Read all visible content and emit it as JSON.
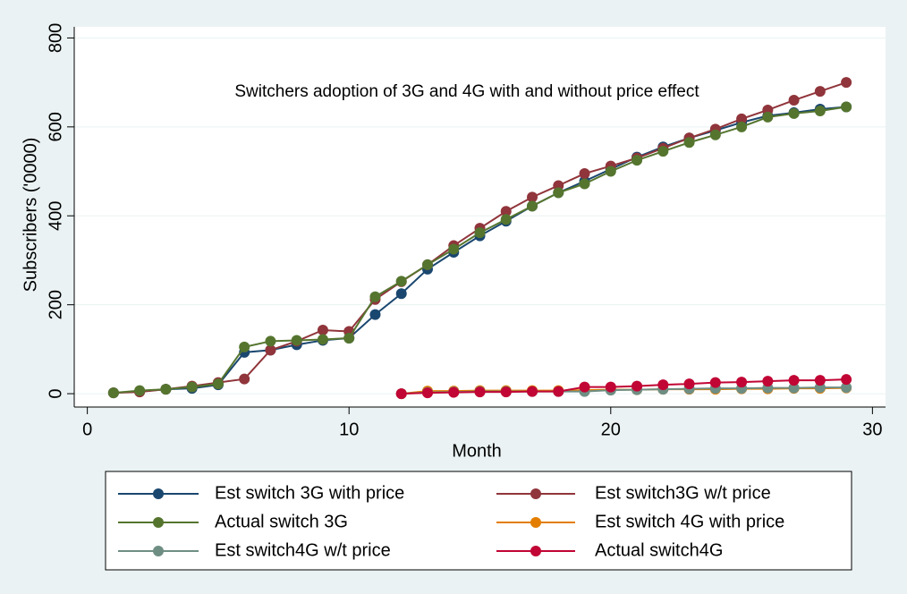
{
  "chart_data": {
    "type": "line",
    "title": "Switchers adoption of 3G and 4G with and without price effect",
    "x_label": "Month",
    "y_label": "Subscribers ('0000)",
    "x": [
      1,
      2,
      3,
      4,
      5,
      6,
      7,
      8,
      9,
      10,
      11,
      12,
      13,
      14,
      15,
      16,
      17,
      18,
      19,
      20,
      21,
      22,
      23,
      24,
      25,
      26,
      27,
      28,
      29
    ],
    "series": [
      {
        "name": "Est switch 3G with price",
        "color": "#1a476f",
        "values": [
          2,
          5,
          10,
          12,
          20,
          93,
          98,
          110,
          120,
          125,
          178,
          225,
          280,
          318,
          355,
          388,
          422,
          452,
          478,
          505,
          532,
          555,
          575,
          592,
          610,
          625,
          632,
          640,
          645
        ]
      },
      {
        "name": "Est switch3G w/t price",
        "color": "#90353b",
        "values": [
          2,
          4,
          10,
          17,
          25,
          33,
          98,
          118,
          143,
          140,
          212,
          252,
          290,
          333,
          372,
          410,
          442,
          468,
          495,
          512,
          530,
          552,
          575,
          595,
          618,
          638,
          660,
          680,
          700
        ]
      },
      {
        "name": "Actual switch 3G",
        "color": "#55752f",
        "values": [
          2,
          7,
          10,
          15,
          22,
          105,
          118,
          120,
          122,
          125,
          218,
          253,
          290,
          325,
          362,
          392,
          422,
          452,
          472,
          500,
          525,
          545,
          565,
          582,
          600,
          622,
          630,
          636,
          645
        ]
      },
      {
        "name": "Est switch 4G with price",
        "color": "#e37e00",
        "values": [
          null,
          null,
          null,
          null,
          null,
          null,
          null,
          null,
          null,
          null,
          null,
          0,
          6,
          6,
          7,
          7,
          7,
          7,
          8,
          9,
          9,
          10,
          10,
          10,
          11,
          11,
          12,
          12,
          13
        ]
      },
      {
        "name": "Est switch4G w/t price",
        "color": "#6e8e84",
        "values": [
          null,
          null,
          null,
          null,
          null,
          null,
          null,
          null,
          null,
          null,
          null,
          0,
          3,
          4,
          5,
          5,
          5,
          5,
          5,
          8,
          9,
          10,
          11,
          12,
          12,
          13,
          13,
          14,
          14
        ]
      },
      {
        "name": "Actual switch4G",
        "color": "#c10534",
        "values": [
          null,
          null,
          null,
          null,
          null,
          null,
          null,
          null,
          null,
          null,
          null,
          0,
          2,
          3,
          4,
          4,
          5,
          5,
          15,
          15,
          17,
          20,
          22,
          25,
          26,
          28,
          30,
          30,
          32
        ]
      }
    ],
    "xlim": [
      -0.5,
      30.5
    ],
    "xticks": [
      0,
      10,
      20,
      30
    ],
    "ylim": [
      -30,
      825
    ],
    "yticks": [
      0,
      200,
      400,
      600,
      800
    ],
    "grid": true
  }
}
